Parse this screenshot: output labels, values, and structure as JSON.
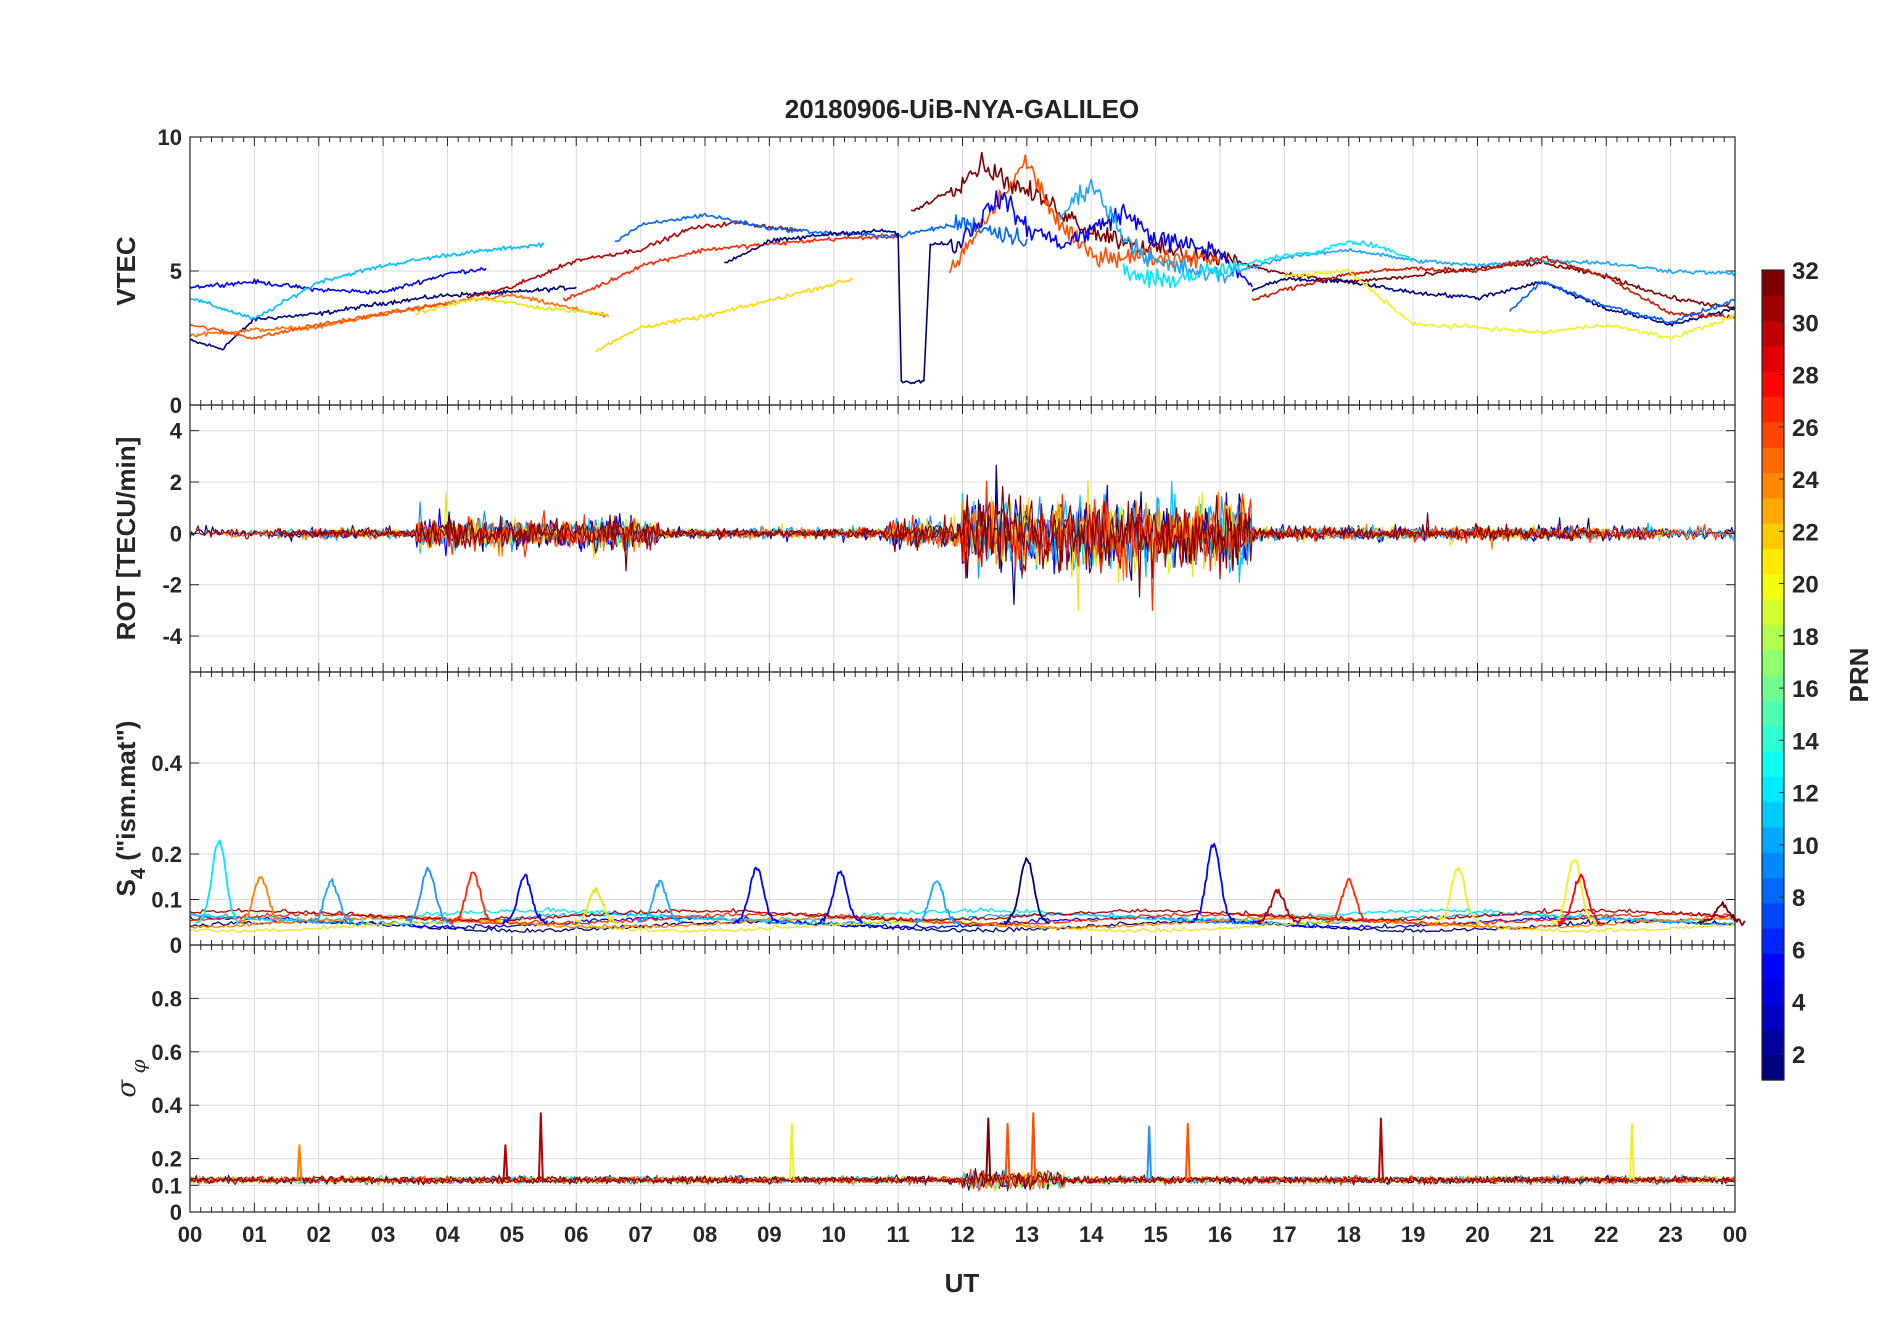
{
  "figure": {
    "title": "20180906-UiB-NYA-GALILEO",
    "xlabel": "UT",
    "x_ticks": [
      "00",
      "01",
      "02",
      "03",
      "04",
      "05",
      "06",
      "07",
      "08",
      "09",
      "10",
      "11",
      "12",
      "13",
      "14",
      "15",
      "16",
      "17",
      "18",
      "19",
      "20",
      "21",
      "22",
      "23",
      "00"
    ]
  },
  "colorbar": {
    "label": "PRN",
    "range": [
      1,
      32
    ],
    "ticks": [
      2,
      4,
      6,
      8,
      10,
      12,
      14,
      16,
      18,
      20,
      22,
      24,
      26,
      28,
      30,
      32
    ],
    "colormap": "jet",
    "levels": 32
  },
  "chart_data": [
    {
      "type": "line",
      "panel": "vtec",
      "ylabel": "VTEC",
      "ylim": [
        0,
        10
      ],
      "yticks": [
        0,
        5,
        10
      ],
      "xlim_hours": [
        0,
        24
      ],
      "grid": true,
      "series": [
        {
          "color": "#00007f",
          "x": [
            0,
            0.5,
            1,
            2,
            3,
            4,
            5,
            6
          ],
          "y": [
            2.4,
            2.1,
            3.2,
            3.4,
            3.8,
            4.1,
            4.2,
            4.4
          ]
        },
        {
          "color": "#0000ff",
          "x": [
            0,
            1,
            2,
            3,
            4,
            4.6
          ],
          "y": [
            4.4,
            4.6,
            4.3,
            4.2,
            4.9,
            5.1
          ]
        },
        {
          "color": "#00bfff",
          "x": [
            0,
            1,
            2,
            3,
            4,
            5.5
          ],
          "y": [
            4.0,
            3.2,
            4.6,
            5.2,
            5.6,
            6.0
          ]
        },
        {
          "color": "#ff7000",
          "x": [
            0,
            1,
            2,
            3,
            4,
            5,
            6.5
          ],
          "y": [
            2.6,
            2.8,
            2.9,
            3.4,
            3.8,
            4.1,
            3.3
          ]
        },
        {
          "color": "#e6e61a",
          "x": [
            3.5,
            4.5,
            5.5,
            6.5
          ],
          "y": [
            3.4,
            4.0,
            3.6,
            3.4
          ]
        },
        {
          "color": "#ff5000",
          "x": [
            0,
            1,
            2,
            3,
            4
          ],
          "y": [
            3.0,
            2.5,
            3.0,
            3.4,
            3.8
          ]
        },
        {
          "color": "#b30000",
          "x": [
            4.3,
            5,
            6,
            7,
            7.8,
            8.5,
            9.5
          ],
          "y": [
            4.0,
            4.4,
            5.4,
            5.8,
            6.6,
            6.8,
            6.5
          ]
        },
        {
          "color": "#ff2a00",
          "x": [
            5.8,
            6.5,
            7,
            8,
            9,
            10,
            11
          ],
          "y": [
            3.9,
            4.6,
            5.2,
            5.8,
            6.0,
            6.2,
            6.3
          ]
        },
        {
          "color": "#0066ff",
          "x": [
            6.6,
            7,
            8,
            9,
            10,
            11,
            12,
            13
          ],
          "y": [
            6.1,
            6.7,
            7.1,
            6.6,
            6.4,
            6.3,
            6.8,
            6.2
          ]
        },
        {
          "color": "#ffd700",
          "x": [
            6.3,
            7,
            8,
            9,
            10.3
          ],
          "y": [
            2.0,
            2.9,
            3.3,
            3.9,
            4.7
          ]
        },
        {
          "color": "#00007f",
          "x": [
            8.3,
            9,
            10,
            10.8,
            11.0,
            11.05,
            11.15,
            11.4,
            11.5,
            12
          ],
          "y": [
            5.3,
            6.1,
            6.4,
            6.5,
            6.4,
            0.9,
            0.8,
            0.9,
            6.0,
            6.0
          ]
        },
        {
          "color": "#7f0000",
          "x": [
            11.2,
            11.8,
            12.3,
            12.8,
            13.3,
            14,
            15,
            16,
            17,
            18,
            19,
            20,
            21,
            22,
            23,
            24
          ],
          "y": [
            7.2,
            8.0,
            9.0,
            8.2,
            7.6,
            6.5,
            5.8,
            5.5,
            4.9,
            4.6,
            4.8,
            5.1,
            5.3,
            4.8,
            4.0,
            3.6
          ]
        },
        {
          "color": "#ff5000",
          "x": [
            11.8,
            12.5,
            13,
            13.5,
            14,
            15,
            16
          ],
          "y": [
            4.9,
            7.4,
            9.1,
            6.7,
            5.6,
            5.5,
            5.5
          ]
        },
        {
          "color": "#0000ff",
          "x": [
            12,
            12.6,
            13,
            13.6,
            14.5,
            15,
            16,
            16.5
          ],
          "y": [
            6.2,
            7.8,
            6.6,
            6.0,
            7.2,
            6.2,
            5.7,
            4.4
          ]
        },
        {
          "color": "#1aa5ff",
          "x": [
            13.5,
            14,
            14.5,
            15,
            16,
            17,
            18,
            19,
            20,
            21,
            22,
            23,
            24
          ],
          "y": [
            7.0,
            8.3,
            6.3,
            5.3,
            4.8,
            5.5,
            5.8,
            5.4,
            5.2,
            5.4,
            5.3,
            5.0,
            4.9
          ]
        },
        {
          "color": "#00e5ff",
          "x": [
            14.5,
            15,
            16,
            17,
            17.5,
            18,
            18.5,
            19
          ],
          "y": [
            5.0,
            4.6,
            5.0,
            5.6,
            5.7,
            6.1,
            5.9,
            5.4
          ]
        },
        {
          "color": "#00007f",
          "x": [
            16.5,
            17,
            18,
            19,
            20,
            21,
            22,
            23,
            24
          ],
          "y": [
            4.3,
            4.7,
            4.6,
            4.2,
            4.0,
            4.6,
            3.6,
            3.0,
            3.6
          ]
        },
        {
          "color": "#c81a00",
          "x": [
            16.5,
            17,
            18,
            19,
            20,
            21,
            22,
            23,
            24
          ],
          "y": [
            3.9,
            4.3,
            4.9,
            5.1,
            5.0,
            5.5,
            4.8,
            3.4,
            3.3
          ]
        },
        {
          "color": "#f0f020",
          "x": [
            17,
            18,
            19,
            20,
            21,
            22,
            23,
            24
          ],
          "y": [
            4.8,
            5.0,
            3.0,
            2.9,
            2.7,
            3.0,
            2.5,
            3.3
          ]
        },
        {
          "color": "#0060ff",
          "x": [
            20.5,
            21,
            22,
            23,
            24
          ],
          "y": [
            3.5,
            4.6,
            3.7,
            3.1,
            3.9
          ]
        }
      ]
    },
    {
      "type": "line",
      "panel": "rot",
      "ylabel": "ROT [TECU/min]",
      "ylim": [
        -5.4,
        5
      ],
      "yticks": [
        -4,
        -2,
        0,
        2,
        4
      ],
      "xlim_hours": [
        0,
        24
      ],
      "grid": true,
      "noise_bands": [
        {
          "x": [
            0,
            3.5
          ],
          "amp": 0.35
        },
        {
          "x": [
            3.5,
            7.3
          ],
          "amp": 1.1
        },
        {
          "x": [
            7.3,
            10.8
          ],
          "amp": 0.35
        },
        {
          "x": [
            10.8,
            12.0
          ],
          "amp": 1.0
        },
        {
          "x": [
            12.0,
            16.5
          ],
          "amp": 2.6
        },
        {
          "x": [
            16.5,
            24
          ],
          "amp": 0.45
        }
      ],
      "series_colors": [
        "#00007f",
        "#0000ff",
        "#1e90ff",
        "#00bfff",
        "#e6e61a",
        "#ff8000",
        "#ff3000",
        "#b30000",
        "#7f0000"
      ]
    },
    {
      "type": "line",
      "panel": "s4",
      "ylabel": "S",
      "ylabel_subscript": "4",
      "ylabel_suffix": " (\"ism.mat\")",
      "ylim": [
        0,
        0.6
      ],
      "yticks": [
        0,
        0.1,
        0.2,
        0.4
      ],
      "xlim_hours": [
        0,
        24
      ],
      "grid": true,
      "baseline": 0.05,
      "peaks": [
        {
          "x": 0.45,
          "y": 0.23,
          "color": "#00e5ff"
        },
        {
          "x": 1.1,
          "y": 0.15,
          "color": "#ff8000"
        },
        {
          "x": 2.2,
          "y": 0.14,
          "color": "#1aa5ff"
        },
        {
          "x": 3.7,
          "y": 0.17,
          "color": "#1e90ff"
        },
        {
          "x": 4.4,
          "y": 0.16,
          "color": "#ff2a00"
        },
        {
          "x": 5.2,
          "y": 0.15,
          "color": "#0000ff"
        },
        {
          "x": 6.3,
          "y": 0.12,
          "color": "#e6e61a"
        },
        {
          "x": 7.3,
          "y": 0.14,
          "color": "#1aa5ff"
        },
        {
          "x": 8.8,
          "y": 0.17,
          "color": "#0000ff"
        },
        {
          "x": 10.1,
          "y": 0.16,
          "color": "#0000ff"
        },
        {
          "x": 11.6,
          "y": 0.14,
          "color": "#1aa5ff"
        },
        {
          "x": 13.0,
          "y": 0.19,
          "color": "#00007f"
        },
        {
          "x": 15.9,
          "y": 0.22,
          "color": "#0000ff"
        },
        {
          "x": 16.9,
          "y": 0.12,
          "color": "#b30000"
        },
        {
          "x": 18.0,
          "y": 0.14,
          "color": "#ff2a00"
        },
        {
          "x": 19.7,
          "y": 0.17,
          "color": "#f0f020"
        },
        {
          "x": 21.5,
          "y": 0.19,
          "color": "#f0f020"
        },
        {
          "x": 21.6,
          "y": 0.15,
          "color": "#ff0000"
        },
        {
          "x": 23.8,
          "y": 0.09,
          "color": "#7f0000"
        }
      ],
      "series_colors": [
        "#00007f",
        "#0000ff",
        "#1aa5ff",
        "#00e5ff",
        "#e6e61a",
        "#ff8000",
        "#ff2a00",
        "#b30000"
      ]
    },
    {
      "type": "line",
      "panel": "sigma_phi",
      "ylabel": "σ",
      "ylabel_subscript": "φ",
      "ylim": [
        0,
        1
      ],
      "yticks": [
        0,
        0.1,
        0.2,
        0.4,
        0.6,
        0.8
      ],
      "xlim_hours": [
        0,
        24
      ],
      "grid": true,
      "baseline": 0.12,
      "spikes": [
        {
          "x": 1.7,
          "y": 0.25,
          "color": "#ff8000"
        },
        {
          "x": 4.9,
          "y": 0.25,
          "color": "#b30000"
        },
        {
          "x": 5.45,
          "y": 0.37,
          "color": "#b30000"
        },
        {
          "x": 9.35,
          "y": 0.33,
          "color": "#f0f020"
        },
        {
          "x": 12.4,
          "y": 0.35,
          "color": "#7f0000"
        },
        {
          "x": 12.7,
          "y": 0.33,
          "color": "#ff5000"
        },
        {
          "x": 13.1,
          "y": 0.37,
          "color": "#ff5000"
        },
        {
          "x": 14.9,
          "y": 0.32,
          "color": "#1e90ff"
        },
        {
          "x": 15.5,
          "y": 0.33,
          "color": "#ff5000"
        },
        {
          "x": 18.5,
          "y": 0.35,
          "color": "#b30000"
        },
        {
          "x": 22.4,
          "y": 0.33,
          "color": "#f0f020"
        }
      ],
      "series_colors": [
        "#00007f",
        "#1aa5ff",
        "#00e5ff",
        "#f0f020",
        "#ff8000",
        "#ff3000",
        "#b30000",
        "#7f0000"
      ]
    }
  ]
}
